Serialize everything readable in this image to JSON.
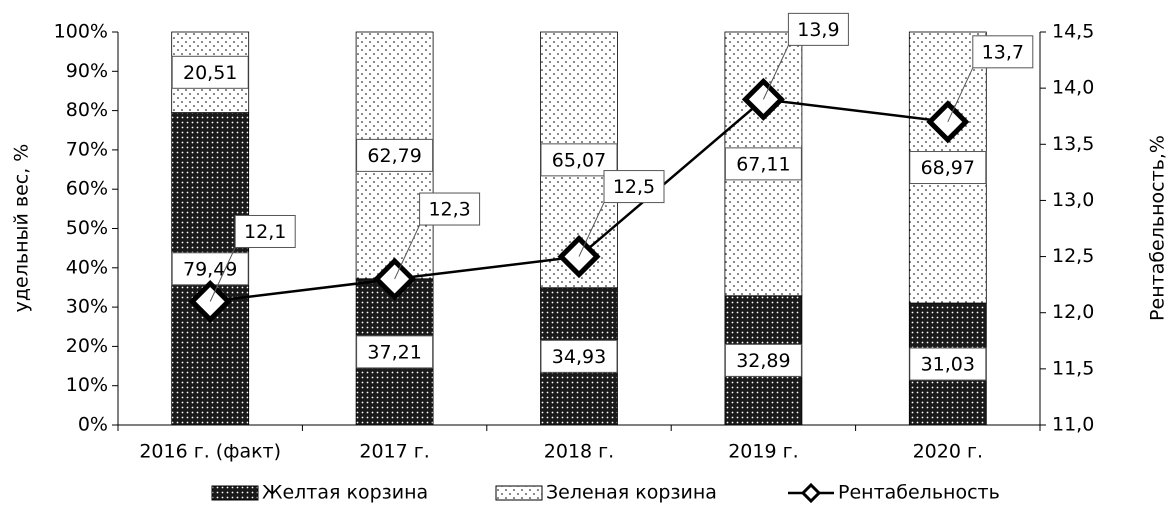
{
  "chart_data": {
    "type": "bar",
    "categories": [
      "2016 г. (факт)",
      "2017 г.",
      "2018 г.",
      "2019 г.",
      "2020 г."
    ],
    "series": [
      {
        "name": "Желтая корзина",
        "color": "#1a1a1a",
        "values": [
          79.49,
          37.21,
          34.93,
          32.89,
          31.03
        ],
        "value_labels": [
          "79,49",
          "37,21",
          "34,93",
          "32,89",
          "31,03"
        ]
      },
      {
        "name": "Зеленая корзина",
        "color": "#ffffff",
        "values": [
          20.51,
          62.79,
          65.07,
          67.11,
          68.97
        ],
        "value_labels": [
          "20,51",
          "62,79",
          "65,07",
          "67,11",
          "68,97"
        ]
      },
      {
        "name": "Рентабельность",
        "type": "line",
        "axis": "y2",
        "color": "#000000",
        "values": [
          12.1,
          12.3,
          12.5,
          13.9,
          13.7
        ],
        "value_labels": [
          "12,1",
          "12,3",
          "12,5",
          "13,9",
          "13,7"
        ]
      }
    ],
    "stacked": true,
    "ylabel": "удельный вес, %",
    "y2label": "Рентабельность,%",
    "ylim": [
      0,
      100
    ],
    "yticks": [
      {
        "value": 0,
        "label": "0%"
      },
      {
        "value": 10,
        "label": "10%"
      },
      {
        "value": 20,
        "label": "20%"
      },
      {
        "value": 30,
        "label": "30%"
      },
      {
        "value": 40,
        "label": "40%"
      },
      {
        "value": 50,
        "label": "50%"
      },
      {
        "value": 60,
        "label": "60%"
      },
      {
        "value": 70,
        "label": "70%"
      },
      {
        "value": 80,
        "label": "80%"
      },
      {
        "value": 90,
        "label": "90%"
      },
      {
        "value": 100,
        "label": "100%"
      }
    ],
    "y2lim": [
      11,
      14.5
    ],
    "y2ticks": [
      {
        "value": 11,
        "label": "11,0"
      },
      {
        "value": 11.5,
        "label": "11,5"
      },
      {
        "value": 12,
        "label": "12,0"
      },
      {
        "value": 12.5,
        "label": "12,5"
      },
      {
        "value": 13,
        "label": "13,0"
      },
      {
        "value": 13.5,
        "label": "13,5"
      },
      {
        "value": 14,
        "label": "14,0"
      },
      {
        "value": 14.5,
        "label": "14,5"
      }
    ],
    "legend": "bottom",
    "grid": false
  }
}
